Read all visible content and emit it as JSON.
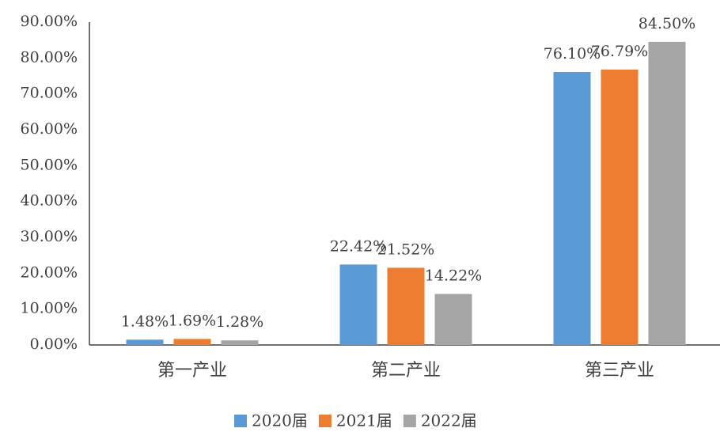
{
  "chart_data": {
    "type": "bar",
    "categories": [
      "第一产业",
      "第二产业",
      "第三产业"
    ],
    "series": [
      {
        "name": "2020届",
        "color": "#5b9bd5",
        "values": [
          1.48,
          22.42,
          76.1
        ],
        "value_labels": [
          "1.48%",
          "22.42%",
          "76.10%"
        ]
      },
      {
        "name": "2021届",
        "color": "#ed7d31",
        "values": [
          1.69,
          21.52,
          76.79
        ],
        "value_labels": [
          "1.69%",
          "21.52%",
          "76.79%"
        ]
      },
      {
        "name": "2022届",
        "color": "#a5a5a5",
        "values": [
          1.28,
          14.22,
          84.5
        ],
        "value_labels": [
          "1.28%",
          "14.22%",
          "84.50%"
        ]
      }
    ],
    "ylim": [
      0,
      90
    ],
    "yticks": [
      {
        "value": 0,
        "label": "0.00%"
      },
      {
        "value": 10,
        "label": "10.00%"
      },
      {
        "value": 20,
        "label": "20.00%"
      },
      {
        "value": 30,
        "label": "30.00%"
      },
      {
        "value": 40,
        "label": "40.00%"
      },
      {
        "value": 50,
        "label": "50.00%"
      },
      {
        "value": 60,
        "label": "60.00%"
      },
      {
        "value": 70,
        "label": "70.00%"
      },
      {
        "value": 80,
        "label": "80.00%"
      },
      {
        "value": 90,
        "label": "90.00%"
      }
    ],
    "grid": false,
    "legend": "bottom"
  }
}
